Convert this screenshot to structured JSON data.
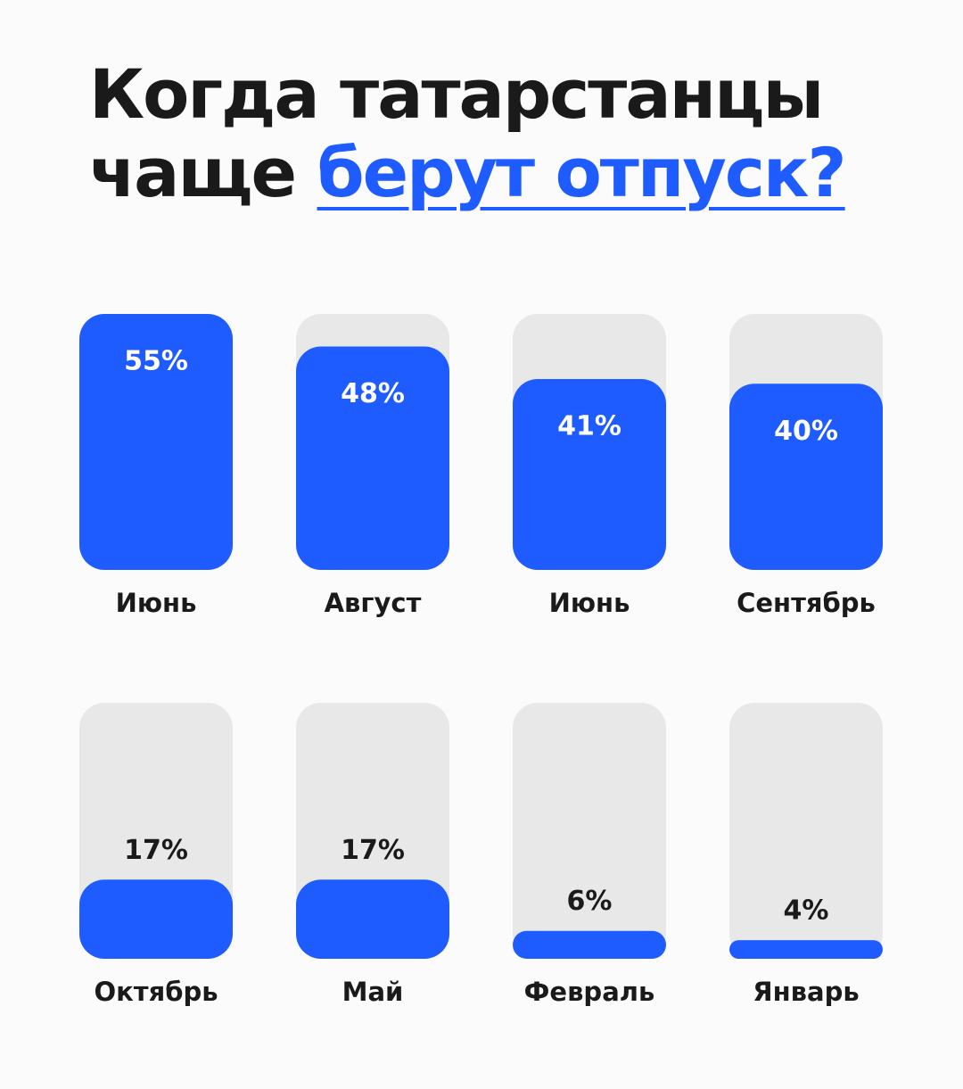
{
  "chart_data": {
    "type": "bar",
    "title": "Когда татарстанцы чаще",
    "title_highlight": "берут отпуск?",
    "categories": [
      "Июнь",
      "Август",
      "Июнь",
      "Сентябрь",
      "Октябрь",
      "Май",
      "Февраль",
      "Январь"
    ],
    "values": [
      55,
      48,
      41,
      40,
      17,
      17,
      6,
      4
    ],
    "value_labels": [
      "55%",
      "48%",
      "41%",
      "40%",
      "17%",
      "17%",
      "6%",
      "4%"
    ],
    "color": "#1f5cff",
    "track_color": "#e8e8e8",
    "ylim": [
      0,
      55
    ]
  }
}
